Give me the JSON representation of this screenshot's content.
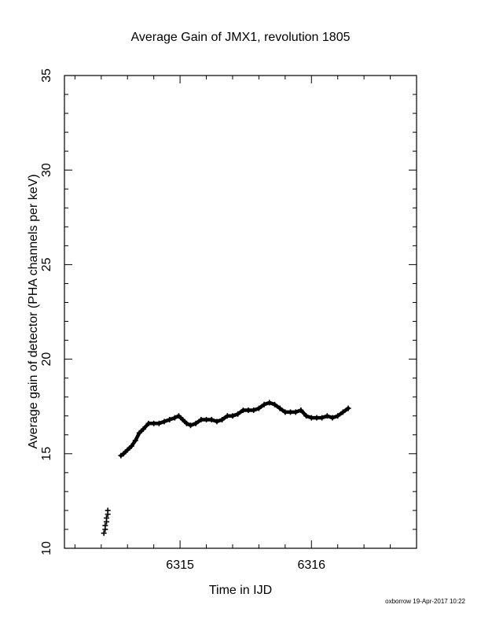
{
  "chart_data": {
    "type": "scatter",
    "title": "Average Gain of JMX1, revolution 1805",
    "xlabel": "Time in IJD",
    "ylabel": "Average gain of detector (PHA channels per keV)",
    "xlim": [
      6314.12,
      6316.8
    ],
    "ylim": [
      10,
      35
    ],
    "xticks_labeled": [
      6315,
      6316
    ],
    "yticks": [
      10,
      15,
      20,
      25,
      30,
      35
    ],
    "grid": false,
    "marker": "plus",
    "series": [
      {
        "values": [
          [
            6314.42,
            10.8
          ],
          [
            6314.43,
            11.0
          ],
          [
            6314.43,
            11.2
          ],
          [
            6314.44,
            11.4
          ],
          [
            6314.44,
            11.6
          ],
          [
            6314.45,
            11.8
          ],
          [
            6314.45,
            12.0
          ],
          [
            6314.55,
            14.9
          ],
          [
            6314.57,
            15.0
          ],
          [
            6314.6,
            15.2
          ],
          [
            6314.63,
            15.4
          ],
          [
            6314.66,
            15.7
          ],
          [
            6314.69,
            16.1
          ],
          [
            6314.72,
            16.3
          ],
          [
            6314.76,
            16.6
          ],
          [
            6314.8,
            16.6
          ],
          [
            6314.84,
            16.6
          ],
          [
            6314.88,
            16.7
          ],
          [
            6314.92,
            16.8
          ],
          [
            6314.96,
            16.9
          ],
          [
            6314.99,
            17.0
          ],
          [
            6315.02,
            16.8
          ],
          [
            6315.05,
            16.6
          ],
          [
            6315.08,
            16.5
          ],
          [
            6315.12,
            16.6
          ],
          [
            6315.16,
            16.8
          ],
          [
            6315.2,
            16.8
          ],
          [
            6315.24,
            16.8
          ],
          [
            6315.28,
            16.7
          ],
          [
            6315.32,
            16.8
          ],
          [
            6315.36,
            17.0
          ],
          [
            6315.4,
            17.0
          ],
          [
            6315.44,
            17.1
          ],
          [
            6315.48,
            17.3
          ],
          [
            6315.52,
            17.3
          ],
          [
            6315.56,
            17.3
          ],
          [
            6315.6,
            17.4
          ],
          [
            6315.64,
            17.6
          ],
          [
            6315.68,
            17.7
          ],
          [
            6315.72,
            17.6
          ],
          [
            6315.76,
            17.4
          ],
          [
            6315.8,
            17.2
          ],
          [
            6315.84,
            17.2
          ],
          [
            6315.88,
            17.2
          ],
          [
            6315.92,
            17.3
          ],
          [
            6315.96,
            17.0
          ],
          [
            6316.0,
            16.9
          ],
          [
            6316.04,
            16.9
          ],
          [
            6316.08,
            16.9
          ],
          [
            6316.12,
            17.0
          ],
          [
            6316.16,
            16.9
          ],
          [
            6316.2,
            17.0
          ],
          [
            6316.24,
            17.2
          ],
          [
            6316.28,
            17.4
          ]
        ]
      }
    ]
  },
  "footer": "oxborrow 19-Apr-2017 10:22"
}
